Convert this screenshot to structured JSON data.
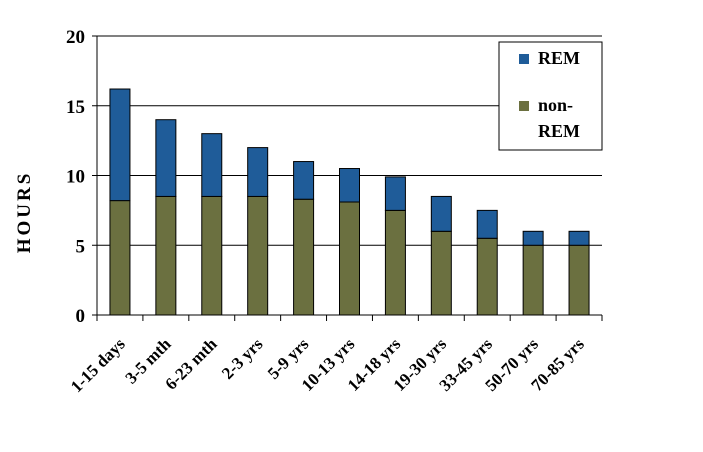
{
  "chart_data": {
    "type": "bar",
    "stacked": true,
    "ylabel": "HOURS",
    "xlabel": "",
    "title": "",
    "ylim": [
      0,
      20
    ],
    "yticks": [
      0,
      5,
      10,
      15,
      20
    ],
    "grid": true,
    "legend_position": "top-right",
    "categories": [
      "1-15 days",
      "3-5 mth",
      "6-23 mth",
      "2-3 yrs",
      "5-9 yrs",
      "10-13 yrs",
      "14-18 yrs",
      "19-30 yrs",
      "33-45 yrs",
      "50-70 yrs",
      "70-85 yrs"
    ],
    "series": [
      {
        "name": "non-REM",
        "color": "#6b7040",
        "values": [
          8.2,
          8.5,
          8.5,
          8.5,
          8.3,
          8.1,
          7.5,
          6.0,
          5.5,
          5.0,
          5.0
        ]
      },
      {
        "name": "REM",
        "color": "#1f5c99",
        "values": [
          8.0,
          5.5,
          4.5,
          3.5,
          2.7,
          2.4,
          2.4,
          2.5,
          2.0,
          1.0,
          1.0
        ]
      }
    ],
    "legend": [
      {
        "name": "REM",
        "color": "#1f5c99"
      },
      {
        "name": "non-REM",
        "color": "#6b7040"
      }
    ]
  }
}
